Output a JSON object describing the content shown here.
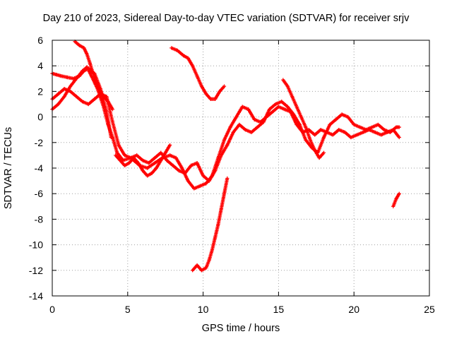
{
  "chart_data": {
    "type": "scatter",
    "title": "Day 210 of 2023, Sidereal Day-to-day VTEC variation (SDTVAR) for receiver srjv",
    "xlabel": "GPS time / hours",
    "ylabel": "SDTVAR / TECUs",
    "xlim": [
      0,
      25
    ],
    "ylim": [
      -14,
      6
    ],
    "xticks": [
      "0",
      "5",
      "10",
      "15",
      "20",
      "25"
    ],
    "yticks": [
      "-14",
      "-12",
      "-10",
      "-8",
      "-6",
      "-4",
      "-2",
      "0",
      "2",
      "4",
      "6"
    ],
    "grid": true,
    "marker_color": "#ff0000",
    "series": [
      {
        "x": [
          0.0,
          0.4,
          0.8,
          1.2,
          1.6,
          2.0,
          2.3,
          2.6,
          3.0,
          3.4,
          3.7,
          4.0,
          4.3,
          4.7,
          5.2,
          5.8,
          6.3,
          6.8,
          7.3,
          7.8,
          8.2,
          8.6,
          9.0,
          9.4,
          9.8,
          10.2,
          10.6,
          11.0,
          11.4,
          11.8,
          12.2,
          12.6,
          13.0,
          13.4,
          13.8,
          14.2,
          14.6,
          15.0,
          15.4,
          15.8,
          16.2,
          16.6,
          17.0,
          17.4,
          17.8,
          18.2,
          18.6,
          19.0,
          19.4,
          19.8,
          20.2,
          20.6,
          21.0,
          21.4,
          21.8,
          22.2,
          22.6,
          23.0
        ],
        "y": [
          0.6,
          1.0,
          1.6,
          2.4,
          3.0,
          3.6,
          3.9,
          3.2,
          2.2,
          0.8,
          -0.6,
          -1.6,
          -2.8,
          -3.4,
          -3.2,
          -3.8,
          -4.0,
          -3.6,
          -3.2,
          -3.0,
          -3.2,
          -4.0,
          -5.0,
          -5.6,
          -5.4,
          -5.2,
          -4.6,
          -3.2,
          -1.8,
          -0.8,
          0.0,
          0.8,
          0.6,
          -0.2,
          -0.4,
          0.0,
          0.4,
          0.8,
          0.6,
          0.4,
          -0.6,
          -1.2,
          -1.0,
          -1.4,
          -1.0,
          -1.2,
          -1.4,
          -1.0,
          -1.2,
          -1.6,
          -1.4,
          -1.2,
          -1.0,
          -1.2,
          -1.4,
          -1.2,
          -1.0,
          -1.6
        ]
      },
      {
        "x": [
          0.0,
          0.3,
          0.6,
          1.0,
          1.4,
          1.8,
          2.1,
          2.4,
          2.8,
          3.2,
          3.6,
          3.9
        ],
        "y": [
          3.4,
          3.3,
          3.2,
          3.1,
          3.0,
          3.2,
          3.6,
          3.8,
          3.4,
          2.2,
          0.4,
          -1.6
        ]
      },
      {
        "x": [
          0.0,
          0.4,
          0.8,
          1.2,
          1.6,
          2.0,
          2.4,
          2.8,
          3.2,
          3.6,
          4.0,
          4.4,
          4.8,
          5.2,
          5.6,
          6.0,
          6.4,
          6.8,
          7.2,
          7.6,
          8.0,
          8.4,
          8.8,
          9.2,
          9.6,
          10.0,
          10.4,
          10.8,
          11.2,
          11.6,
          12.0,
          12.4,
          12.8,
          13.2,
          13.6,
          14.0,
          14.4,
          14.8,
          15.2,
          15.6,
          16.0,
          16.4,
          16.8,
          17.2,
          17.6,
          18.0,
          18.4,
          18.8,
          19.2,
          19.6,
          20.0,
          20.4,
          20.8,
          21.2,
          21.6,
          22.0,
          22.4,
          22.8,
          23.0
        ],
        "y": [
          1.4,
          1.8,
          2.2,
          2.0,
          1.6,
          1.2,
          1.0,
          1.4,
          1.8,
          1.6,
          -0.4,
          -2.2,
          -3.0,
          -3.2,
          -3.0,
          -3.4,
          -3.6,
          -3.2,
          -2.8,
          -3.4,
          -3.8,
          -4.2,
          -4.4,
          -3.8,
          -3.6,
          -4.6,
          -5.0,
          -4.2,
          -3.0,
          -2.2,
          -1.2,
          -0.6,
          -1.0,
          -1.2,
          -0.8,
          -0.4,
          0.6,
          1.0,
          1.2,
          0.8,
          0.2,
          -0.6,
          -1.8,
          -2.4,
          -2.8,
          -1.6,
          -0.6,
          -0.2,
          0.2,
          0.0,
          -0.6,
          -0.8,
          -1.0,
          -0.8,
          -0.6,
          -1.0,
          -1.2,
          -0.8,
          -0.8
        ]
      },
      {
        "x": [
          1.5,
          1.8,
          2.1,
          2.3,
          2.5,
          2.7,
          2.9,
          3.1,
          3.4,
          3.7,
          4.0
        ],
        "y": [
          5.9,
          5.6,
          5.4,
          4.9,
          4.2,
          3.4,
          2.8,
          2.2,
          1.6,
          1.2,
          0.6
        ]
      },
      {
        "x": [
          4.2,
          4.5,
          4.8,
          5.1,
          5.4,
          5.7,
          6.0,
          6.3,
          6.6,
          6.9,
          7.2,
          7.5,
          7.8
        ],
        "y": [
          -3.0,
          -3.4,
          -3.8,
          -3.6,
          -3.2,
          -3.6,
          -4.2,
          -4.6,
          -4.4,
          -4.0,
          -3.4,
          -2.8,
          -2.2
        ]
      },
      {
        "x": [
          7.9,
          8.3,
          8.7,
          9.0,
          9.3,
          9.6,
          9.9,
          10.2,
          10.5,
          10.8,
          11.1,
          11.4
        ],
        "y": [
          5.4,
          5.2,
          4.8,
          4.6,
          4.0,
          3.2,
          2.4,
          1.8,
          1.4,
          1.4,
          2.0,
          2.4
        ]
      },
      {
        "x": [
          9.3,
          9.6,
          9.9,
          10.2,
          10.4,
          10.6,
          10.8,
          11.0,
          11.2,
          11.4,
          11.6
        ],
        "y": [
          -12.0,
          -11.6,
          -12.0,
          -11.8,
          -11.2,
          -10.4,
          -9.4,
          -8.4,
          -7.2,
          -6.0,
          -4.8
        ]
      },
      {
        "x": [
          15.3,
          15.6,
          15.9,
          16.2,
          16.5,
          16.8,
          17.1,
          17.4,
          17.7,
          18.0
        ],
        "y": [
          2.9,
          2.4,
          1.6,
          0.8,
          0.0,
          -0.8,
          -1.8,
          -2.6,
          -3.2,
          -2.8
        ]
      },
      {
        "x": [
          22.6,
          22.8,
          23.0
        ],
        "y": [
          -7.0,
          -6.4,
          -6.0
        ]
      }
    ]
  }
}
